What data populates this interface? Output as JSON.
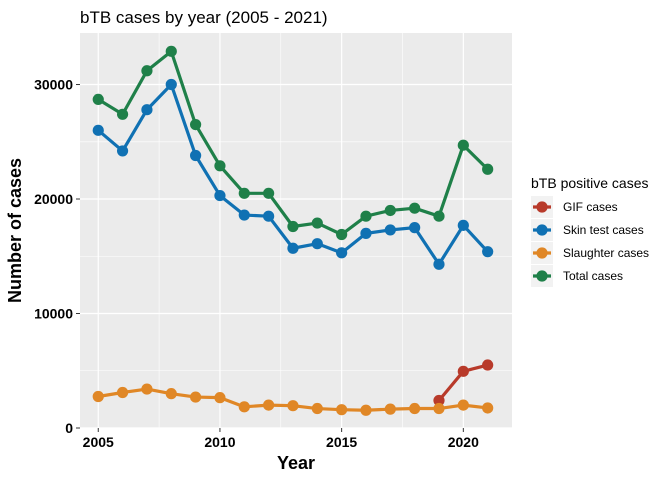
{
  "chart_data": {
    "type": "line",
    "title": "bTB cases by year (2005 - 2021)",
    "xlabel": "Year",
    "ylabel": "Number of cases",
    "xlim": [
      2004.25,
      2022.0
    ],
    "ylim": [
      0,
      34500
    ],
    "x_ticks": [
      2005,
      2010,
      2015,
      2020
    ],
    "y_ticks": [
      0,
      10000,
      20000,
      30000
    ],
    "grid": true,
    "legend": {
      "title": "bTB positive cases",
      "position": "right"
    },
    "series": [
      {
        "name": "GIF cases",
        "color": "#b83a2a",
        "x": [
          2019,
          2020,
          2021
        ],
        "values": [
          2400,
          4950,
          5500
        ]
      },
      {
        "name": "Skin test cases",
        "color": "#1071b3",
        "x": [
          2005,
          2006,
          2007,
          2008,
          2009,
          2010,
          2011,
          2012,
          2013,
          2014,
          2015,
          2016,
          2017,
          2018,
          2019,
          2020,
          2021
        ],
        "values": [
          26000,
          24200,
          27800,
          30000,
          23800,
          20300,
          18600,
          18500,
          15700,
          16100,
          15300,
          17000,
          17300,
          17500,
          14300,
          17700,
          15400
        ]
      },
      {
        "name": "Slaughter cases",
        "color": "#e08726",
        "x": [
          2005,
          2006,
          2007,
          2008,
          2009,
          2010,
          2011,
          2012,
          2013,
          2014,
          2015,
          2016,
          2017,
          2018,
          2019,
          2020,
          2021
        ],
        "values": [
          2750,
          3100,
          3400,
          3000,
          2700,
          2650,
          1850,
          2000,
          1950,
          1700,
          1600,
          1550,
          1650,
          1700,
          1700,
          2000,
          1750
        ]
      },
      {
        "name": "Total cases",
        "color": "#1f8049",
        "x": [
          2005,
          2006,
          2007,
          2008,
          2009,
          2010,
          2011,
          2012,
          2013,
          2014,
          2015,
          2016,
          2017,
          2018,
          2019,
          2020,
          2021
        ],
        "values": [
          28700,
          27400,
          31200,
          32900,
          26500,
          22900,
          20500,
          20500,
          17600,
          17900,
          16900,
          18500,
          19000,
          19200,
          18500,
          24700,
          22600
        ]
      }
    ]
  }
}
